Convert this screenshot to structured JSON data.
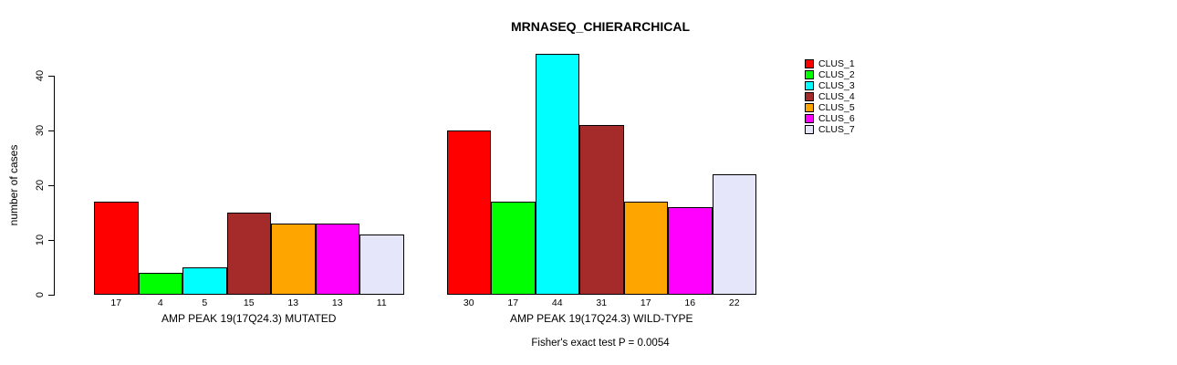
{
  "chart_data": {
    "type": "bar",
    "title": "MRNASEQ_CHIERARCHICAL",
    "ylabel": "number of cases",
    "xlabel": "",
    "annotation": "Fisher's exact test P = 0.0054",
    "yticks": [
      0,
      10,
      20,
      30,
      40
    ],
    "ylim": [
      0,
      44
    ],
    "grid": false,
    "legend_position": "right",
    "series_names": [
      "CLUS_1",
      "CLUS_2",
      "CLUS_3",
      "CLUS_4",
      "CLUS_5",
      "CLUS_6",
      "CLUS_7"
    ],
    "series_colors": [
      "#FF0000",
      "#00FF00",
      "#00FFFF",
      "#A52A2A",
      "#FFA500",
      "#FF00FF",
      "#E6E6FA"
    ],
    "groups": [
      {
        "label": "AMP PEAK 19(17Q24.3) MUTATED",
        "values": [
          17,
          4,
          5,
          15,
          13,
          13,
          11
        ]
      },
      {
        "label": "AMP PEAK 19(17Q24.3) WILD-TYPE",
        "values": [
          30,
          17,
          44,
          31,
          17,
          16,
          22
        ]
      }
    ],
    "colors": {
      "background": "#FFFFFF",
      "axis": "#000000",
      "text": "#000000"
    }
  }
}
